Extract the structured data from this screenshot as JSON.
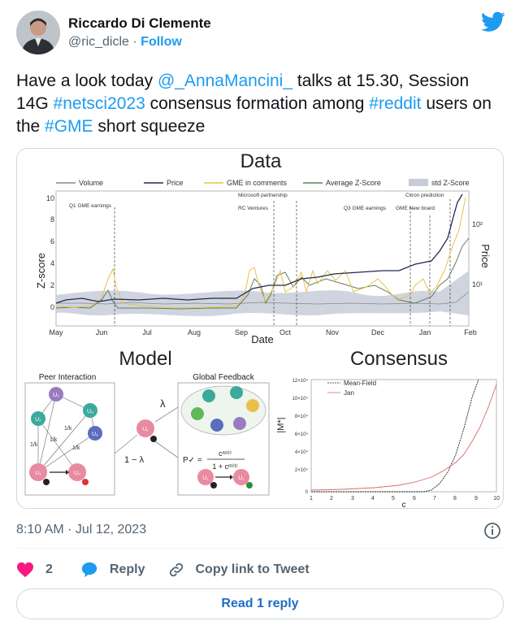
{
  "author": {
    "name": "Riccardo Di Clemente",
    "handle": "@ric_dicle",
    "separator": "·",
    "follow_label": "Follow"
  },
  "tweet": {
    "parts": [
      {
        "text": "Have a look today "
      },
      {
        "text": "@_AnnaMancini_",
        "link": true
      },
      {
        "text": " talks at 15.30, Session 14G "
      },
      {
        "text": "#netsci2023",
        "link": true
      },
      {
        "text": "  consensus formation among "
      },
      {
        "text": "#reddit",
        "link": true
      },
      {
        "text": " users on the "
      },
      {
        "text": "#GME",
        "link": true
      },
      {
        "text": " short squeeze"
      }
    ]
  },
  "figure": {
    "data_panel": {
      "title": "Data",
      "legend": [
        "Volume",
        "Price",
        "GME in comments",
        "Average Z-Score",
        "std Z-Score"
      ],
      "y_label": "Z-score",
      "y_ticks": [
        "10",
        "8",
        "6",
        "4",
        "2",
        "0"
      ],
      "right_label": "Price",
      "right_ticks": [
        "10²",
        "10¹"
      ],
      "x_label": "Date",
      "x_ticks": [
        "May",
        "Jun",
        "Jul",
        "Aug",
        "Sep",
        "Oct",
        "Nov",
        "Dec",
        "Jan",
        "Feb"
      ],
      "events": [
        "Q1 GME earnings",
        "Microsoft partnership",
        "RC Ventures",
        "Q3 GME earnings",
        "GME New board",
        "Citron prediction"
      ]
    },
    "model_panel": {
      "title": "Model",
      "peer_title": "Peer Interaction",
      "global_title": "Global Feedback",
      "nodes": [
        "U₁",
        "U₂",
        "U₃",
        "U₄",
        "U₅",
        "U₆"
      ],
      "lambda": "λ",
      "one_minus_lambda": "1 − λ",
      "inv_k": "1/k",
      "formula_lhs": "P✓ =",
      "formula_num": "cᵐ⁽ᵗ⁾",
      "formula_den": "1 + cᵐ⁽ᵗ⁾"
    },
    "consensus_panel": {
      "title": "Consensus",
      "y_label": "|M*|",
      "x_label": "c",
      "x_ticks": [
        "1",
        "2",
        "3",
        "4",
        "5",
        "6",
        "7",
        "8",
        "9",
        "10"
      ],
      "y_ticks": [
        "12×10⁴",
        "10×10⁴",
        "8×10⁴",
        "6×10⁴",
        "4×10⁴",
        "2×10⁴",
        "0"
      ],
      "legend": [
        "Mean-Field",
        "Jan"
      ]
    }
  },
  "meta": {
    "timestamp": "8:10 AM · Jul 12, 2023"
  },
  "actions": {
    "likes": "2",
    "reply_label": "Reply",
    "copy_label": "Copy link to Tweet"
  },
  "read_reply_label": "Read 1 reply",
  "colors": {
    "link": "#1d9bf0",
    "heart": "#f91880",
    "volume": "#888888",
    "price": "#1f2a4e",
    "comments": "#e8c14a",
    "avg_z": "#5f7f5f",
    "std_z": "#c7ccd9",
    "jan": "#d36b6b"
  }
}
